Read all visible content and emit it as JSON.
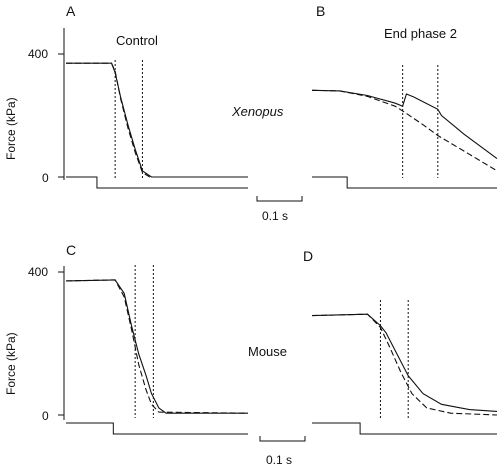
{
  "chart_data": {
    "type": "line",
    "time_scale_bar": "0.1 s",
    "panels": [
      {
        "letter": "A",
        "title": "Control",
        "ylabel": "Force (kPa)",
        "yticks": [
          "400",
          "0"
        ],
        "ylim": [
          0,
          420
        ],
        "xlim": [
          0,
          1.0
        ],
        "species_label": "Xenopus",
        "markers_x": [
          0.27,
          0.42
        ],
        "step_x": 0.17,
        "series": [
          {
            "style": "solid",
            "points": [
              [
                0,
                370
              ],
              [
                0.25,
                370
              ],
              [
                0.27,
                340
              ],
              [
                0.3,
                260
              ],
              [
                0.34,
                170
              ],
              [
                0.38,
                90
              ],
              [
                0.42,
                20
              ],
              [
                0.47,
                0
              ],
              [
                1.0,
                0
              ]
            ]
          },
          {
            "style": "dashed",
            "points": [
              [
                0,
                370
              ],
              [
                0.25,
                370
              ],
              [
                0.27,
                345
              ],
              [
                0.3,
                255
              ],
              [
                0.34,
                160
              ],
              [
                0.38,
                80
              ],
              [
                0.42,
                15
              ],
              [
                0.46,
                0
              ],
              [
                1.0,
                0
              ]
            ]
          }
        ]
      },
      {
        "letter": "B",
        "title": "End phase 2",
        "ylabel": "",
        "yticks": [],
        "ylim": [
          0,
          420
        ],
        "xlim": [
          0,
          1.0
        ],
        "species_label": "",
        "markers_x": [
          0.49,
          0.68
        ],
        "step_x": 0.19,
        "series": [
          {
            "style": "solid",
            "points": [
              [
                0,
                282
              ],
              [
                0.15,
                280
              ],
              [
                0.3,
                265
              ],
              [
                0.45,
                240
              ],
              [
                0.49,
                230
              ],
              [
                0.51,
                270
              ],
              [
                0.55,
                260
              ],
              [
                0.68,
                220
              ],
              [
                0.7,
                200
              ],
              [
                0.82,
                140
              ],
              [
                1.0,
                60
              ]
            ]
          },
          {
            "style": "dashed",
            "points": [
              [
                0,
                282
              ],
              [
                0.15,
                280
              ],
              [
                0.3,
                262
              ],
              [
                0.45,
                230
              ],
              [
                0.49,
                215
              ],
              [
                0.6,
                170
              ],
              [
                0.68,
                135
              ],
              [
                0.82,
                85
              ],
              [
                1.0,
                20
              ]
            ]
          }
        ]
      },
      {
        "letter": "C",
        "title": "",
        "ylabel": "Force (kPa)",
        "yticks": [
          "400",
          "0"
        ],
        "ylim": [
          0,
          420
        ],
        "xlim": [
          0,
          1.0
        ],
        "species_label": "Mouse",
        "markers_x": [
          0.38,
          0.48
        ],
        "step_x": 0.26,
        "series": [
          {
            "style": "solid",
            "points": [
              [
                0,
                375
              ],
              [
                0.27,
                378
              ],
              [
                0.32,
                340
              ],
              [
                0.36,
                250
              ],
              [
                0.4,
                170
              ],
              [
                0.44,
                110
              ],
              [
                0.47,
                60
              ],
              [
                0.51,
                20
              ],
              [
                0.55,
                5
              ],
              [
                1.0,
                5
              ]
            ]
          },
          {
            "style": "dashed",
            "points": [
              [
                0,
                375
              ],
              [
                0.27,
                378
              ],
              [
                0.32,
                330
              ],
              [
                0.36,
                240
              ],
              [
                0.4,
                140
              ],
              [
                0.44,
                70
              ],
              [
                0.47,
                30
              ],
              [
                0.51,
                8
              ],
              [
                1.0,
                5
              ]
            ]
          }
        ]
      },
      {
        "letter": "D",
        "title": "",
        "ylabel": "",
        "yticks": [],
        "ylim": [
          0,
          420
        ],
        "xlim": [
          0,
          1.0
        ],
        "species_label": "",
        "markers_x": [
          0.37,
          0.52
        ],
        "step_x": 0.26,
        "series": [
          {
            "style": "solid",
            "points": [
              [
                0,
                278
              ],
              [
                0.3,
                282
              ],
              [
                0.37,
                250
              ],
              [
                0.4,
                230
              ],
              [
                0.46,
                170
              ],
              [
                0.52,
                110
              ],
              [
                0.6,
                60
              ],
              [
                0.7,
                30
              ],
              [
                0.85,
                15
              ],
              [
                1.0,
                10
              ]
            ]
          },
          {
            "style": "dashed",
            "points": [
              [
                0,
                278
              ],
              [
                0.3,
                282
              ],
              [
                0.37,
                245
              ],
              [
                0.42,
                190
              ],
              [
                0.48,
                120
              ],
              [
                0.54,
                60
              ],
              [
                0.62,
                20
              ],
              [
                0.75,
                5
              ],
              [
                1.0,
                0
              ]
            ]
          }
        ]
      }
    ]
  }
}
